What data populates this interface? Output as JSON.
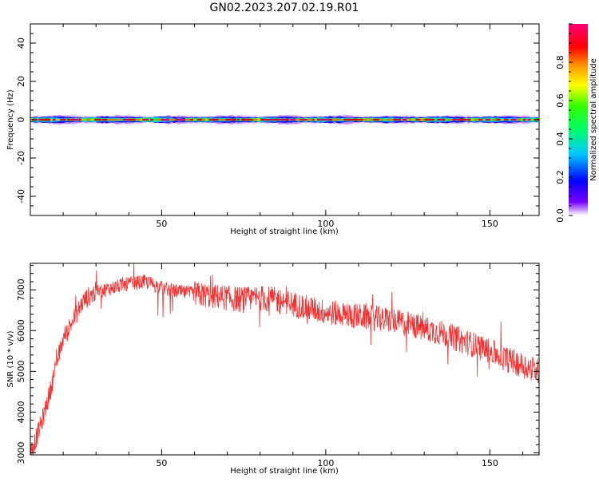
{
  "figure": {
    "title": "GN02.2023.207.02.19.R01"
  },
  "chart_data": [
    {
      "type": "heatmap",
      "title": "GN02.2023.207.02.19.R01",
      "xlabel": "Height of straight line (km)",
      "ylabel": "Frequency (Hz)",
      "xlim": [
        10,
        165
      ],
      "ylim": [
        -50,
        50
      ],
      "xticks": [
        50,
        100,
        150
      ],
      "yticks": [
        -40,
        -20,
        0,
        20,
        40
      ],
      "grid": false,
      "description_values": {
        "band_center_hz": 0,
        "band_halfwidth_hz": 3,
        "peak_normalized_amplitude": 1.0
      },
      "colorbar": {
        "label": "Normalized spectral amplitude",
        "range": [
          0.0,
          1.0
        ],
        "ticks": [
          "0.0",
          "0.2",
          "0.4",
          "0.6",
          "0.8"
        ],
        "colors": [
          "#ffffff",
          "#7a00ff",
          "#0000ff",
          "#00c8ff",
          "#00ff66",
          "#33ff00",
          "#ffff00",
          "#ff9900",
          "#ff0000",
          "#ff0077"
        ]
      }
    },
    {
      "type": "line",
      "xlabel": "Height of straight line (km)",
      "ylabel": "SNR (10 * v/v)",
      "xlim": [
        10,
        165
      ],
      "ylim": [
        2950,
        7650
      ],
      "xticks": [
        50,
        100,
        150
      ],
      "yticks": [
        3000,
        4000,
        5000,
        6000,
        7000
      ],
      "grid": false,
      "color": "#f03232",
      "x": [
        10,
        12,
        14,
        16,
        18,
        20,
        22,
        24,
        26,
        28,
        30,
        35,
        40,
        45,
        50,
        55,
        60,
        65,
        70,
        75,
        80,
        85,
        90,
        95,
        100,
        105,
        110,
        115,
        120,
        125,
        130,
        135,
        140,
        145,
        150,
        155,
        160,
        165
      ],
      "values": [
        3000,
        3400,
        3900,
        4500,
        5200,
        5800,
        6100,
        6400,
        6700,
        6850,
        6950,
        7050,
        7150,
        7200,
        7050,
        6950,
        6900,
        6850,
        6800,
        6750,
        6800,
        6750,
        6650,
        6550,
        6450,
        6400,
        6350,
        6300,
        6250,
        6150,
        6050,
        5950,
        5800,
        5650,
        5500,
        5300,
        5150,
        5000
      ]
    }
  ]
}
